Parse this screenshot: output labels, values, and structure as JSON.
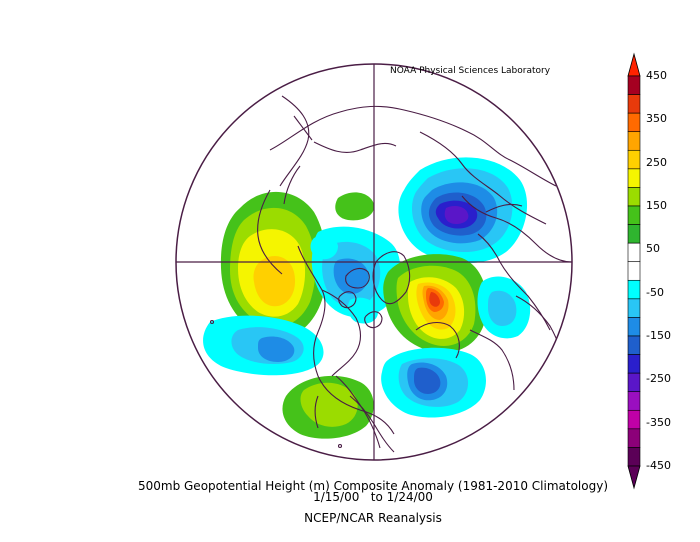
{
  "credit": "NOAA Physical Sciences Laboratory",
  "title_line1": "500mb Geopotential Height (m) Composite Anomaly (1981-2010 Climatology)",
  "title_line2": "1/15/00   to 1/24/00",
  "title_line3": "NCEP/NCAR Reanalysis",
  "colorbar": {
    "labels": [
      "450",
      "350",
      "250",
      "150",
      "50",
      "-50",
      "-150",
      "-250",
      "-350",
      "-450"
    ],
    "colors": [
      "#a50021",
      "#e83a0b",
      "#ff6a00",
      "#ffa500",
      "#ffd000",
      "#f5f500",
      "#9bdc00",
      "#45c21a",
      "#2fb52f",
      "#ffffff",
      "#ffffff",
      "#00ffff",
      "#29c6f5",
      "#1e8ce6",
      "#1f5fcc",
      "#2a1fcc",
      "#5a16c8",
      "#9a0fc0",
      "#c000a6",
      "#8c0079",
      "#5b0057"
    ],
    "top_arrow_color": "#ff2200",
    "bottom_arrow_color": "#5b0057"
  },
  "anomaly_centers": [
    {
      "name": "north-pacific-positive",
      "value": 300,
      "color_key": "positive"
    },
    {
      "name": "siberia-negative",
      "value": -300,
      "color_key": "negative"
    },
    {
      "name": "greenland-positive",
      "value": 400,
      "color_key": "positive"
    },
    {
      "name": "canada-negative",
      "value": -150,
      "color_key": "negative"
    },
    {
      "name": "subtropical-pacific-negative",
      "value": -200,
      "color_key": "negative"
    },
    {
      "name": "north-atlantic-negative",
      "value": -200,
      "color_key": "negative"
    },
    {
      "name": "gulf-positive",
      "value": 150,
      "color_key": "positive"
    },
    {
      "name": "europe-negative",
      "value": -100,
      "color_key": "negative"
    },
    {
      "name": "asia-positive",
      "value": 100,
      "color_key": "positive"
    }
  ]
}
